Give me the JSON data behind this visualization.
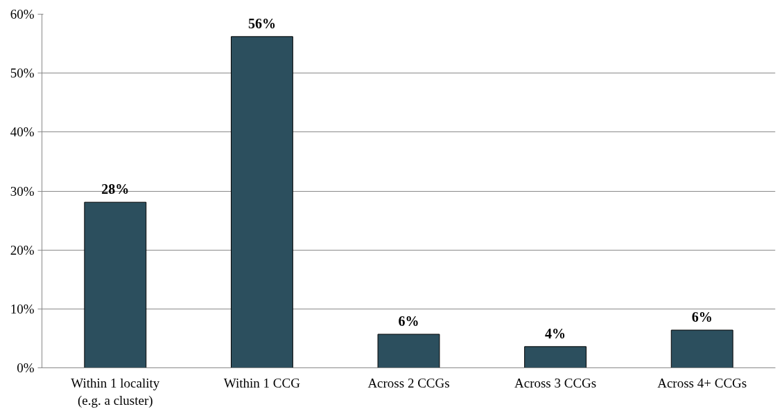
{
  "chart_data": {
    "type": "bar",
    "categories": [
      "Within 1 locality\n(e.g. a cluster)",
      "Within 1 CCG",
      "Across 2 CCGs",
      "Across 3 CCGs",
      "Across 4+ CCGs"
    ],
    "values": [
      28.1,
      56.2,
      5.7,
      3.6,
      6.4
    ],
    "value_labels": [
      "28%",
      "56%",
      "6%",
      "4%",
      "6%"
    ],
    "color": "#2c4f5e",
    "ylim": [
      0,
      60
    ],
    "yticks": [
      {
        "value": 0,
        "label": "0%"
      },
      {
        "value": 10,
        "label": "10%"
      },
      {
        "value": 20,
        "label": "20%"
      },
      {
        "value": 30,
        "label": "30%"
      },
      {
        "value": 40,
        "label": "40%"
      },
      {
        "value": 50,
        "label": "50%"
      },
      {
        "value": 60,
        "label": "60%"
      }
    ],
    "grid": "y"
  }
}
